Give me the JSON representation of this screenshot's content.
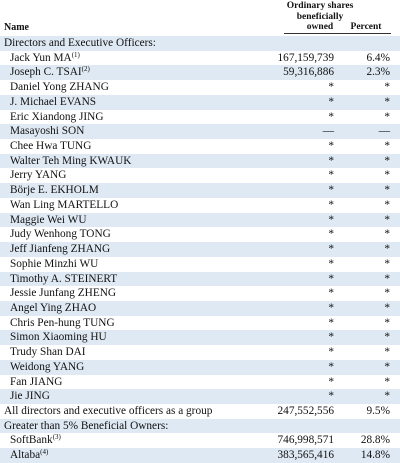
{
  "header": {
    "name": "Name",
    "shares": [
      "Ordinary shares",
      "beneficially",
      "owned"
    ],
    "percent": "Percent"
  },
  "rows": [
    {
      "name": "Directors and Executive Officers:",
      "sup": "",
      "shares": "",
      "pct": "",
      "section": true
    },
    {
      "name": "Jack Yun MA",
      "sup": "(1)",
      "shares": "167,159,739",
      "pct": "6.4%"
    },
    {
      "name": "Joseph C. TSAI",
      "sup": "(2)",
      "shares": "59,316,886",
      "pct": "2.3%"
    },
    {
      "name": "Daniel Yong ZHANG",
      "sup": "",
      "shares": "*",
      "pct": "*"
    },
    {
      "name": "J. Michael EVANS",
      "sup": "",
      "shares": "*",
      "pct": "*"
    },
    {
      "name": "Eric Xiandong JING",
      "sup": "",
      "shares": "*",
      "pct": "*"
    },
    {
      "name": "Masayoshi SON",
      "sup": "",
      "shares": "—",
      "pct": "—"
    },
    {
      "name": "Chee Hwa TUNG",
      "sup": "",
      "shares": "*",
      "pct": "*"
    },
    {
      "name": "Walter Teh Ming KWAUK",
      "sup": "",
      "shares": "*",
      "pct": "*"
    },
    {
      "name": "Jerry YANG",
      "sup": "",
      "shares": "*",
      "pct": "*"
    },
    {
      "name": "Börje E. EKHOLM",
      "sup": "",
      "shares": "*",
      "pct": "*"
    },
    {
      "name": "Wan Ling MARTELLO",
      "sup": "",
      "shares": "*",
      "pct": "*"
    },
    {
      "name": "Maggie Wei WU",
      "sup": "",
      "shares": "*",
      "pct": "*"
    },
    {
      "name": "Judy Wenhong TONG",
      "sup": "",
      "shares": "*",
      "pct": "*"
    },
    {
      "name": "Jeff Jianfeng ZHANG",
      "sup": "",
      "shares": "*",
      "pct": "*"
    },
    {
      "name": "Sophie Minzhi WU",
      "sup": "",
      "shares": "*",
      "pct": "*"
    },
    {
      "name": "Timothy A. STEINERT",
      "sup": "",
      "shares": "*",
      "pct": "*"
    },
    {
      "name": "Jessie Junfang ZHENG",
      "sup": "",
      "shares": "*",
      "pct": "*"
    },
    {
      "name": "Angel Ying ZHAO",
      "sup": "",
      "shares": "*",
      "pct": "*"
    },
    {
      "name": "Chris Pen-hung TUNG",
      "sup": "",
      "shares": "*",
      "pct": "*"
    },
    {
      "name": "Simon Xiaoming HU",
      "sup": "",
      "shares": "*",
      "pct": "*"
    },
    {
      "name": "Trudy Shan DAI",
      "sup": "",
      "shares": "*",
      "pct": "*"
    },
    {
      "name": "Weidong YANG",
      "sup": "",
      "shares": "*",
      "pct": "*"
    },
    {
      "name": "Fan JIANG",
      "sup": "",
      "shares": "*",
      "pct": "*"
    },
    {
      "name": "Jie JING",
      "sup": "",
      "shares": "*",
      "pct": "*"
    },
    {
      "name": "All directors and executive officers as a group",
      "sup": "",
      "shares": "247,552,556",
      "pct": "9.5%",
      "section": true
    },
    {
      "name": "Greater than 5% Beneficial Owners:",
      "sup": "",
      "shares": "",
      "pct": "",
      "section": true
    },
    {
      "name": "SoftBank",
      "sup": "(3)",
      "shares": "746,998,571",
      "pct": "28.8%"
    },
    {
      "name": "Altaba",
      "sup": "(4)",
      "shares": "383,565,416",
      "pct": "14.8%"
    }
  ]
}
